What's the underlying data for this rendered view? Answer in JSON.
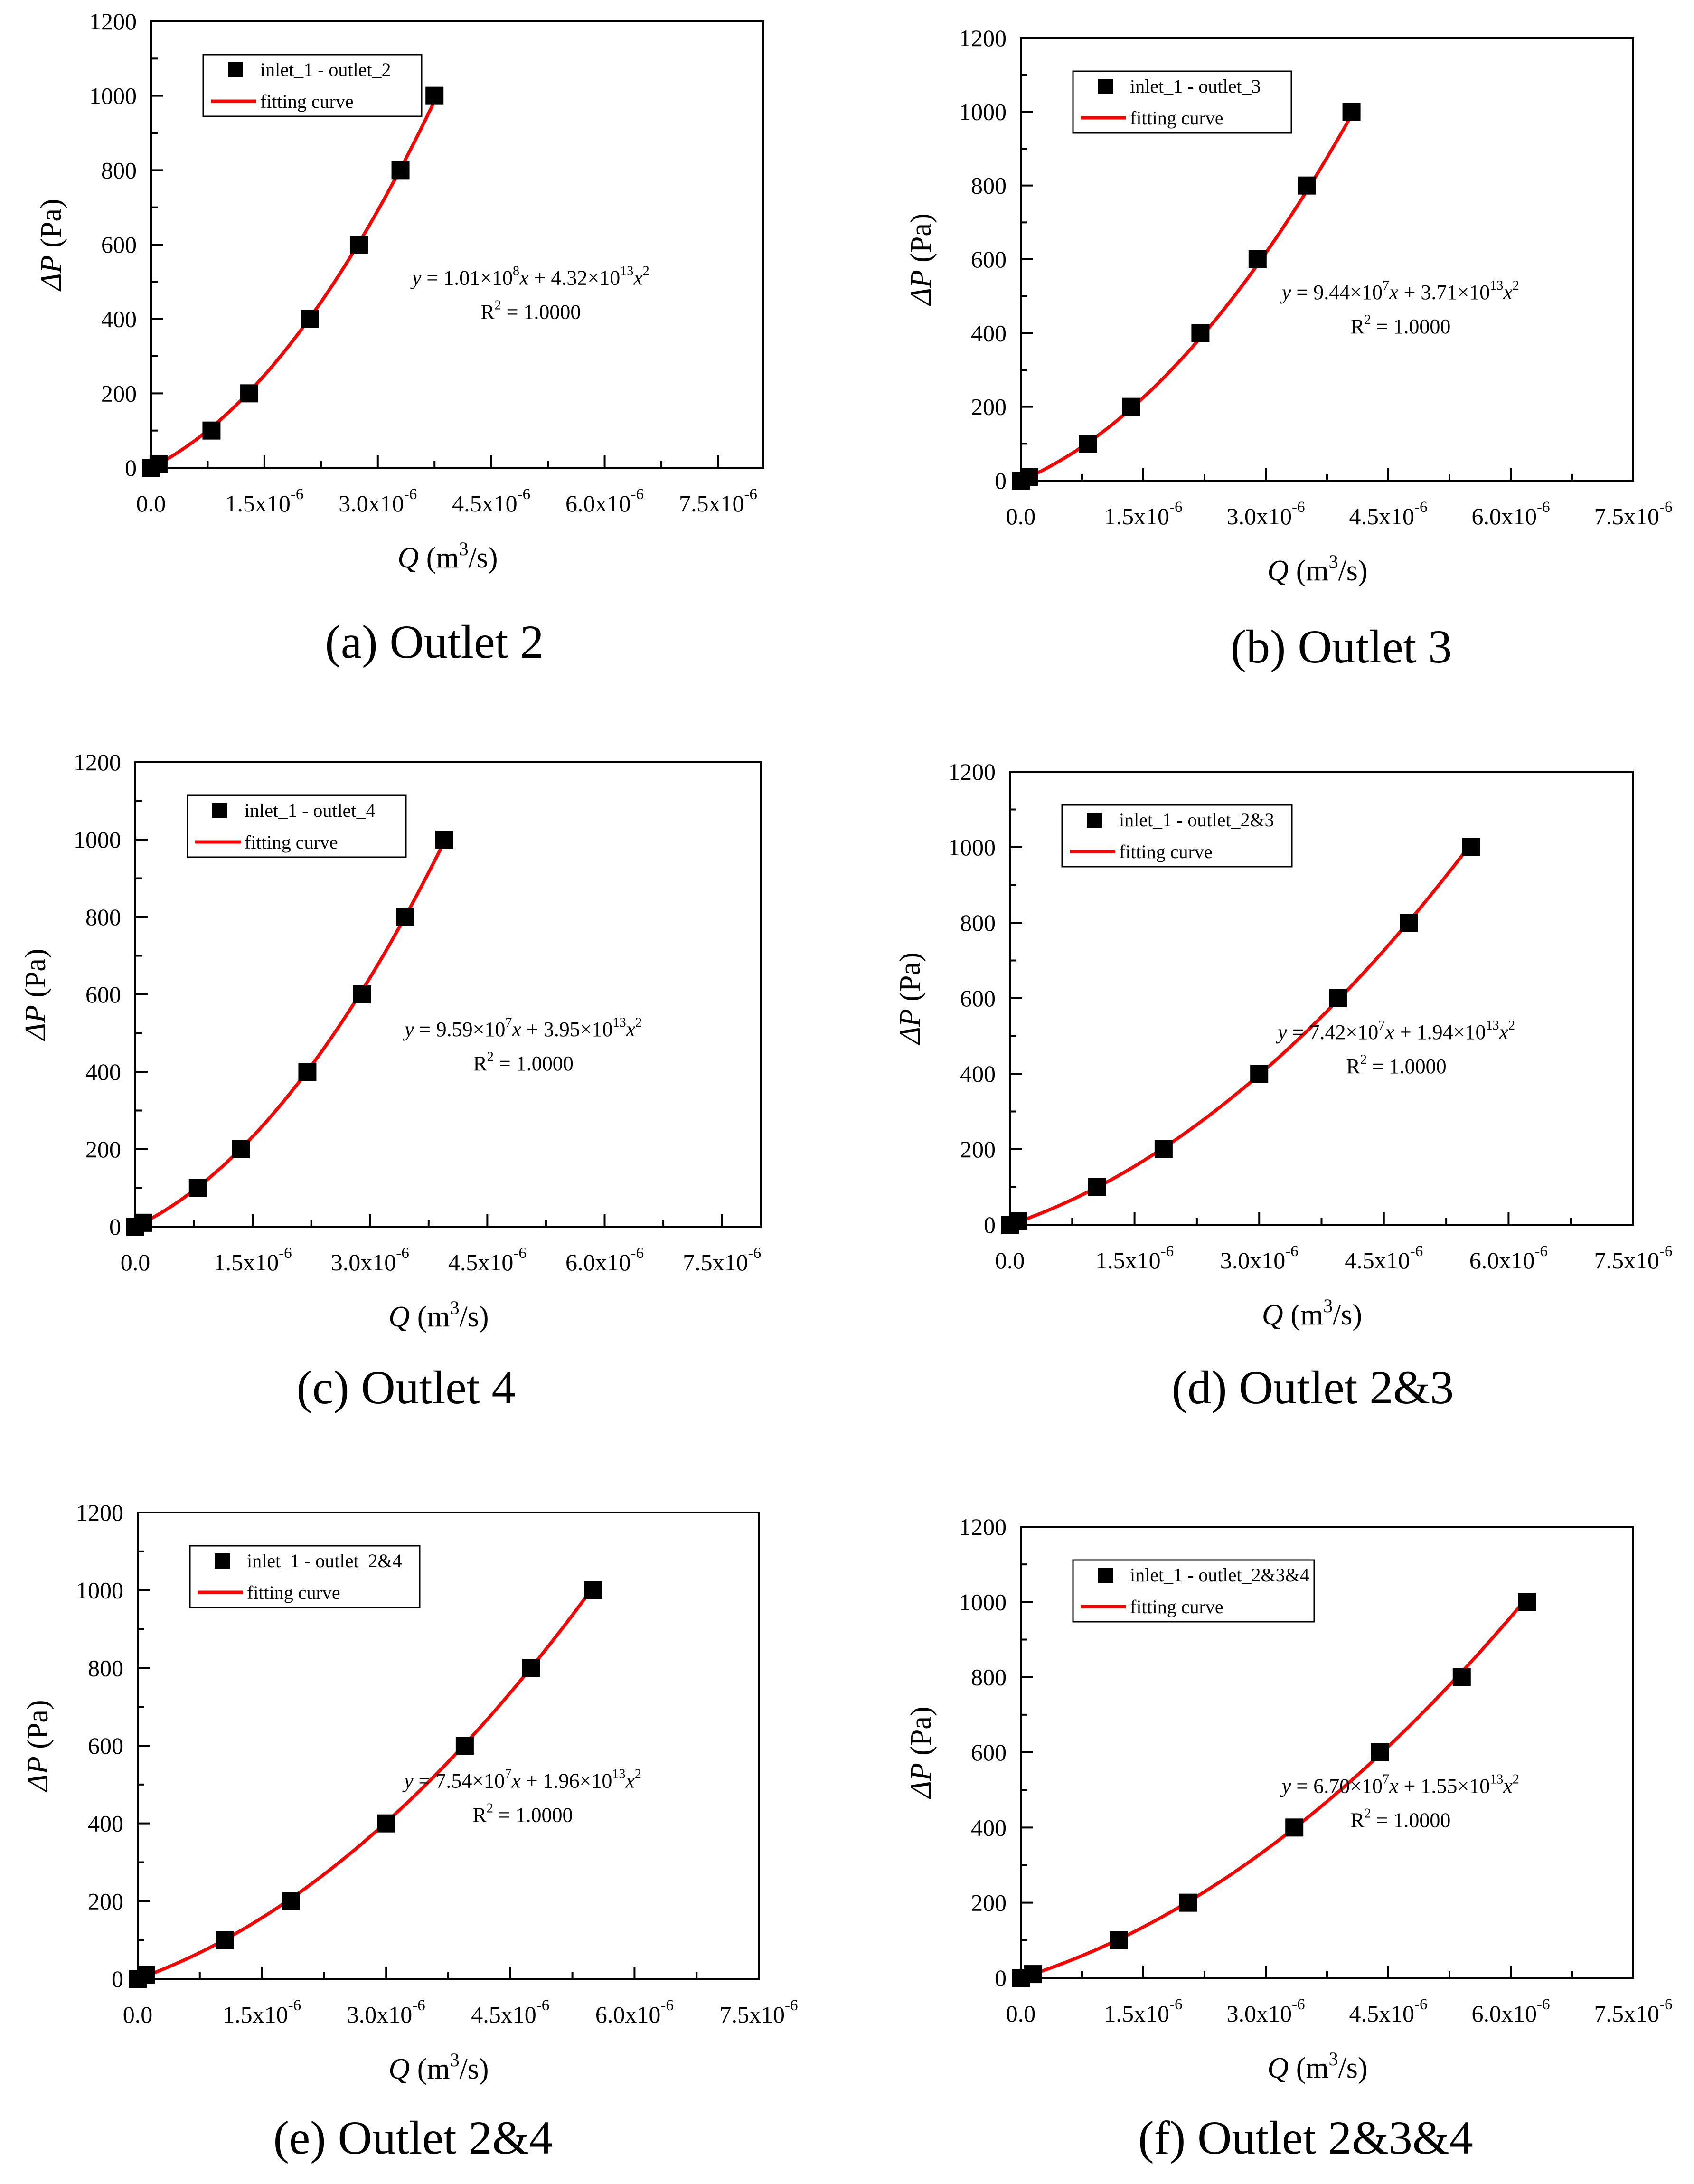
{
  "figure": {
    "description_note": ""
  },
  "colors": {
    "fit": "#ff0000",
    "marker": "#000000",
    "axis": "#000000"
  },
  "common": {
    "ylabel": "ΔP (Pa)",
    "xlabel_base": "Q (m",
    "xlabel_exp": "3",
    "xlabel_tail": "/s)",
    "y_ticks": [
      "0",
      "200",
      "400",
      "600",
      "800",
      "1000",
      "1200"
    ],
    "x_ticks": [
      {
        "mant": "0.0",
        "exp": ""
      },
      {
        "mant": "1.5x10",
        "exp": "-6"
      },
      {
        "mant": "3.0x10",
        "exp": "-6"
      },
      {
        "mant": "4.5x10",
        "exp": "-6"
      },
      {
        "mant": "6.0x10",
        "exp": "-6"
      },
      {
        "mant": "7.5x10",
        "exp": "-6"
      }
    ],
    "legend_fit": "fitting curve",
    "r2_text": "R² = 1.0000"
  },
  "chart_data": [
    {
      "type": "scatter",
      "caption": "(a) Outlet 2",
      "legend_series": "inlet_1 - outlet_2",
      "xlim": [
        0,
        8.1e-06
      ],
      "ylim": [
        0,
        1200
      ],
      "x": [
        0.0,
        1e-07,
        8e-07,
        1.3e-06,
        2.1e-06,
        2.75e-06,
        3.3e-06,
        3.75e-06
      ],
      "y": [
        0,
        10,
        100,
        200,
        400,
        600,
        800,
        1000
      ],
      "fit": {
        "a": 101000000.0,
        "b": 43200000000000.0
      },
      "equation": {
        "a_mant": "1.01",
        "a_exp": "8",
        "b_mant": "4.32",
        "b_exp": "13"
      },
      "r2": "1.0000"
    },
    {
      "type": "scatter",
      "caption": "(b) Outlet 3",
      "legend_series": "inlet_1 - outlet_3",
      "xlim": [
        0,
        7.5e-06
      ],
      "ylim": [
        0,
        1200
      ],
      "x": [
        0.0,
        1e-07,
        8.2e-07,
        1.35e-06,
        2.2e-06,
        2.9e-06,
        3.5e-06,
        4.05e-06
      ],
      "y": [
        0,
        10,
        100,
        200,
        400,
        600,
        800,
        1000
      ],
      "fit": {
        "a": 94400000.0,
        "b": 37100000000000.0
      },
      "equation": {
        "a_mant": "9.44",
        "a_exp": "7",
        "b_mant": "3.71",
        "b_exp": "13"
      },
      "r2": "1.0000"
    },
    {
      "type": "scatter",
      "caption": "(c) Outlet 4",
      "legend_series": "inlet_1 - outlet_4",
      "xlim": [
        0,
        8e-06
      ],
      "ylim": [
        0,
        1200
      ],
      "x": [
        0.0,
        1e-07,
        8e-07,
        1.35e-06,
        2.2e-06,
        2.9e-06,
        3.45e-06,
        3.95e-06
      ],
      "y": [
        0,
        10,
        100,
        200,
        400,
        600,
        800,
        1000
      ],
      "fit": {
        "a": 95900000.0,
        "b": 39500000000000.0
      },
      "equation": {
        "a_mant": "9.59",
        "a_exp": "7",
        "b_mant": "3.95",
        "b_exp": "13"
      },
      "r2": "1.0000"
    },
    {
      "type": "scatter",
      "caption": "(d) Outlet 2&3",
      "legend_series": "inlet_1 - outlet_2&3",
      "xlim": [
        0,
        7.5e-06
      ],
      "ylim": [
        0,
        1200
      ],
      "x": [
        0.0,
        1e-07,
        1.05e-06,
        1.85e-06,
        3e-06,
        3.95e-06,
        4.8e-06,
        5.55e-06
      ],
      "y": [
        0,
        10,
        100,
        200,
        400,
        600,
        800,
        1000
      ],
      "fit": {
        "a": 74200000.0,
        "b": 19400000000000.0
      },
      "equation": {
        "a_mant": "7.42",
        "a_exp": "7",
        "b_mant": "1.94",
        "b_exp": "13"
      },
      "r2": "1.0000"
    },
    {
      "type": "scatter",
      "caption": "(e) Outlet 2&4",
      "legend_series": "inlet_1 - outlet_2&4",
      "xlim": [
        0,
        7.5e-06
      ],
      "ylim": [
        0,
        1200
      ],
      "x": [
        0.0,
        1e-07,
        1.05e-06,
        1.85e-06,
        3e-06,
        3.95e-06,
        4.75e-06,
        5.5e-06
      ],
      "y": [
        0,
        10,
        100,
        200,
        400,
        600,
        800,
        1000
      ],
      "fit": {
        "a": 75400000.0,
        "b": 19600000000000.0
      },
      "equation": {
        "a_mant": "7.54",
        "a_exp": "7",
        "b_mant": "1.96",
        "b_exp": "13"
      },
      "r2": "1.0000"
    },
    {
      "type": "scatter",
      "caption": "(f) Outlet 2&3&4",
      "legend_series": "inlet_1 - outlet_2&3&4",
      "xlim": [
        0,
        7.5e-06
      ],
      "ylim": [
        0,
        1200
      ],
      "x": [
        0.0,
        1.5e-07,
        1.2e-06,
        2.05e-06,
        3.35e-06,
        4.4e-06,
        5.4e-06,
        6.2e-06
      ],
      "y": [
        0,
        10,
        100,
        200,
        400,
        600,
        800,
        1000
      ],
      "fit": {
        "a": 67000000.0,
        "b": 15500000000000.0
      },
      "equation": {
        "a_mant": "6.70",
        "a_exp": "7",
        "b_mant": "1.55",
        "b_exp": "13"
      },
      "r2": "1.0000"
    }
  ]
}
